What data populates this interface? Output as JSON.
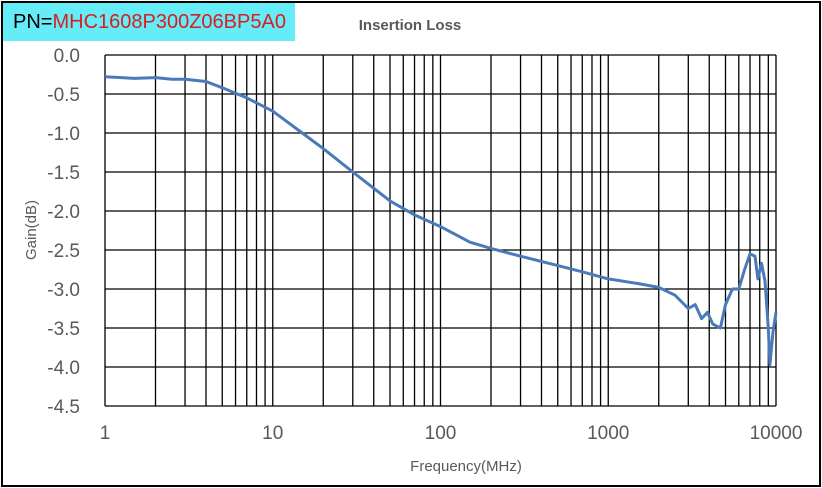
{
  "part_number": {
    "label": "PN=",
    "value": "MHC1608P300Z06BP5A0"
  },
  "chart_data": {
    "type": "line",
    "title": "Insertion Loss",
    "xlabel": "Frequency(MHz)",
    "ylabel": "Gain(dB)",
    "xscale": "log",
    "xlim": [
      1,
      10000
    ],
    "ylim": [
      -4.5,
      0
    ],
    "grid": true,
    "xticks": [
      "1",
      "10",
      "100",
      "1000",
      "10000"
    ],
    "yticks": [
      "0.0",
      "-0.5",
      "-1.0",
      "-1.5",
      "-2.0",
      "-2.5",
      "-3.0",
      "-3.5",
      "-4.0",
      "-4.5"
    ],
    "line_color": "#4a7ab8",
    "series": [
      {
        "name": "Insertion Loss",
        "x": [
          1,
          1.5,
          2,
          2.5,
          3,
          4,
          5,
          7,
          10,
          15,
          20,
          30,
          50,
          70,
          100,
          150,
          200,
          300,
          500,
          700,
          1000,
          1500,
          2000,
          2500,
          3000,
          3300,
          3600,
          3900,
          4200,
          4660,
          5000,
          5500,
          6000,
          6500,
          7000,
          7500,
          7800,
          8200,
          8600,
          9000,
          9200,
          9600,
          10000
        ],
        "y": [
          -0.28,
          -0.3,
          -0.29,
          -0.31,
          -0.31,
          -0.34,
          -0.42,
          -0.55,
          -0.72,
          -1.0,
          -1.2,
          -1.5,
          -1.87,
          -2.05,
          -2.2,
          -2.4,
          -2.48,
          -2.58,
          -2.7,
          -2.78,
          -2.87,
          -2.93,
          -2.98,
          -3.08,
          -3.25,
          -3.2,
          -3.38,
          -3.3,
          -3.45,
          -3.5,
          -3.2,
          -3.0,
          -3.0,
          -2.75,
          -2.55,
          -2.58,
          -2.87,
          -2.67,
          -2.9,
          -3.5,
          -3.97,
          -3.55,
          -3.3
        ]
      }
    ]
  }
}
